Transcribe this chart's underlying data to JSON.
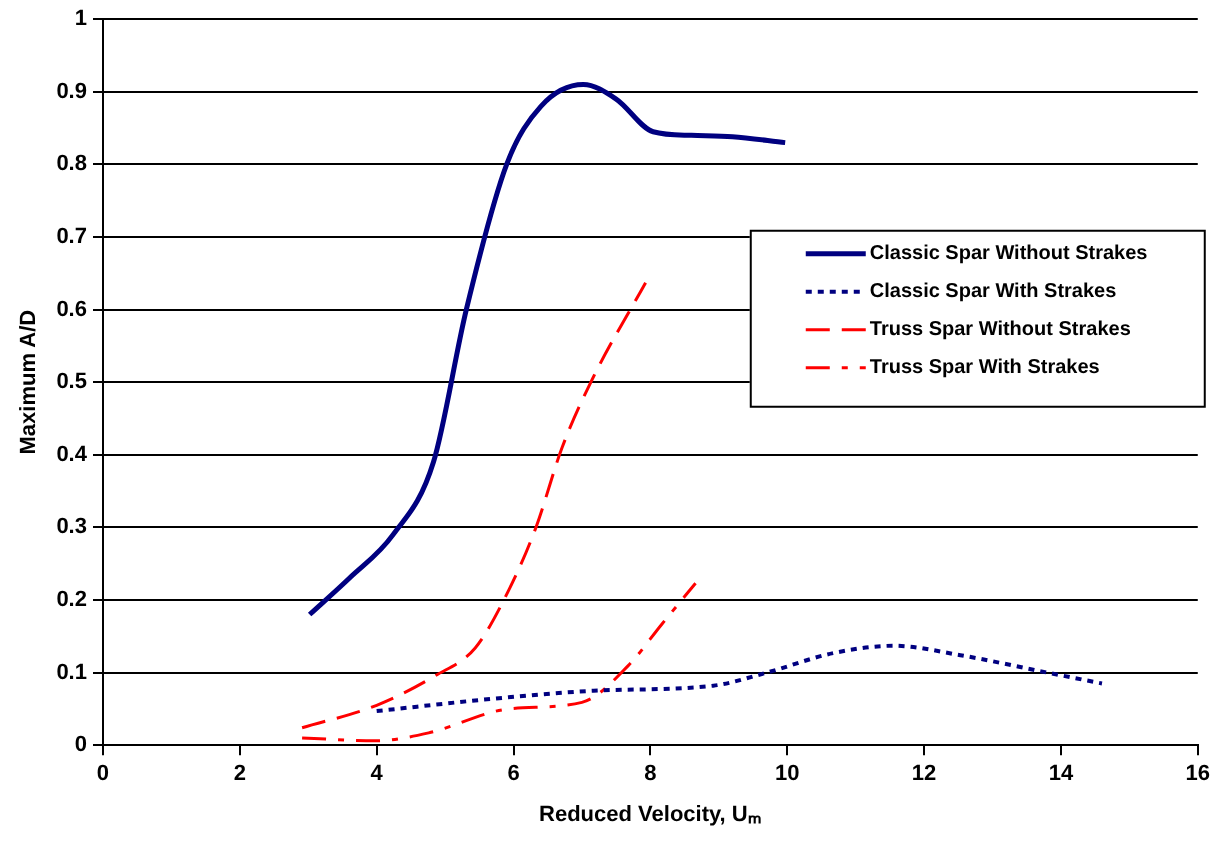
{
  "chart_data": {
    "type": "line",
    "xlabel": "Reduced Velocity, Uₘ",
    "ylabel": "Maximum A/D",
    "xlim": [
      0,
      16
    ],
    "xticks": [
      0,
      2,
      4,
      6,
      8,
      10,
      12,
      14,
      16
    ],
    "ylim": [
      0,
      1
    ],
    "yticks": [
      0,
      0.1,
      0.2,
      0.3,
      0.4,
      0.5,
      0.6,
      0.7,
      0.8,
      0.9,
      1
    ],
    "grid": "y",
    "legend": "right",
    "marker": "none",
    "series": [
      {
        "name": "Classic Spar Without Strakes",
        "color": "#000080",
        "line_style": "solid",
        "x": [
          3.02,
          3.6,
          4.24,
          4.83,
          5.31,
          5.9,
          6.4,
          7.02,
          7.5,
          8.04,
          8.6,
          9.2,
          9.97
        ],
        "values": [
          0.18,
          0.23,
          0.29,
          0.39,
          0.6,
          0.8,
          0.88,
          0.91,
          0.89,
          0.845,
          0.84,
          0.838,
          0.83
        ]
      },
      {
        "name": "Classic Spar With Strakes",
        "color": "#000080",
        "line_style": "dotted",
        "x": [
          4.0,
          5.7,
          7.17,
          8.92,
          9.7,
          10.68,
          11.56,
          12.53,
          13.8,
          14.6
        ],
        "values": [
          0.047,
          0.064,
          0.075,
          0.082,
          0.1,
          0.127,
          0.137,
          0.124,
          0.1,
          0.085
        ]
      },
      {
        "name": "Truss Spar Without Strakes",
        "color": "#ff0000",
        "line_style": "dashed",
        "x": [
          2.91,
          4.0,
          4.86,
          5.44,
          5.88,
          6.32,
          6.71,
          7.15,
          7.93
        ],
        "values": [
          0.024,
          0.055,
          0.096,
          0.134,
          0.204,
          0.298,
          0.41,
          0.504,
          0.637
        ]
      },
      {
        "name": "Truss Spar With Strakes",
        "color": "#ff0000",
        "line_style": "dashdot",
        "x": [
          2.91,
          3.98,
          4.76,
          5.93,
          7.0,
          7.68,
          8.17,
          8.66
        ],
        "values": [
          0.01,
          0.006,
          0.017,
          0.05,
          0.059,
          0.11,
          0.167,
          0.223
        ]
      }
    ]
  }
}
